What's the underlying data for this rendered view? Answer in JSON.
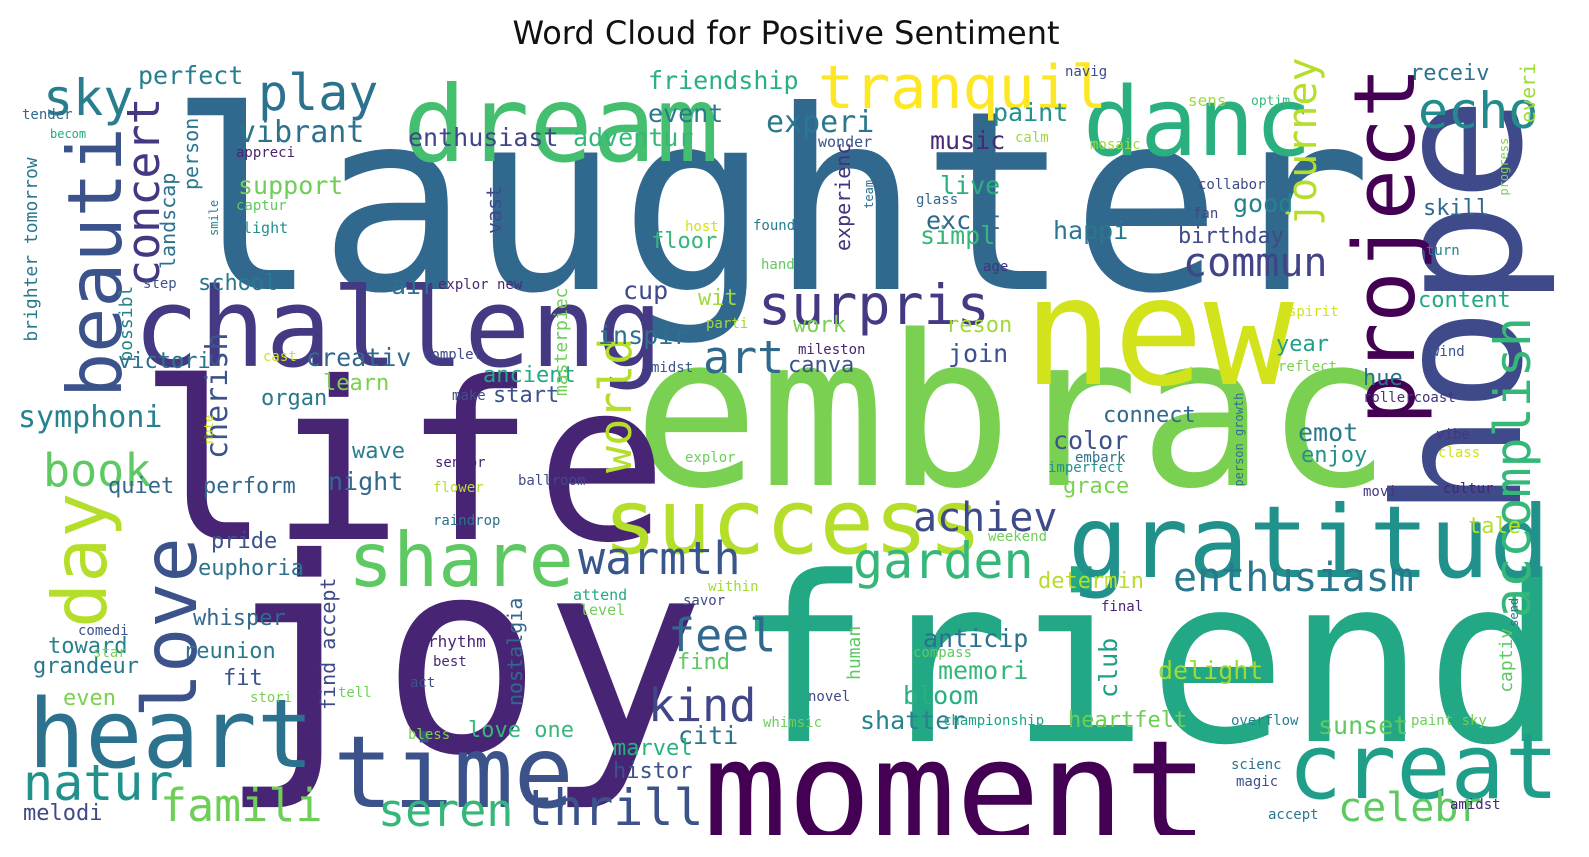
{
  "title": "Word Cloud for Positive Sentiment",
  "words": [
    {
      "text": "laughter",
      "color": "#31688e"
    },
    {
      "text": "joy",
      "color": "#482475"
    },
    {
      "text": "friend",
      "color": "#22a884"
    },
    {
      "text": "embrac",
      "color": "#7ad151"
    },
    {
      "text": "life",
      "color": "#482475"
    },
    {
      "text": "moment",
      "color": "#440154"
    },
    {
      "text": "new",
      "color": "#d2e21b"
    },
    {
      "text": "hope",
      "color": "#3e4a89"
    },
    {
      "text": "dream",
      "color": "#44bf70"
    },
    {
      "text": "challeng",
      "color": "#443983"
    },
    {
      "text": "danc",
      "color": "#2ab07f"
    },
    {
      "text": "gratitud",
      "color": "#21918c"
    },
    {
      "text": "success",
      "color": "#b5de2b"
    },
    {
      "text": "time",
      "color": "#3b528b"
    },
    {
      "text": "heart",
      "color": "#2c728e"
    },
    {
      "text": "project",
      "color": "#440154"
    },
    {
      "text": "creat",
      "color": "#1f9e89"
    },
    {
      "text": "share",
      "color": "#5ec962"
    },
    {
      "text": "tranquil",
      "color": "#fde725"
    },
    {
      "text": "beauti",
      "color": "#3b528b"
    },
    {
      "text": "love",
      "color": "#3b528b"
    },
    {
      "text": "day",
      "color": "#b5de2b"
    },
    {
      "text": "accomplish",
      "color": "#35b779"
    },
    {
      "text": "surpris",
      "color": "#443983"
    },
    {
      "text": "echo",
      "color": "#238a8d"
    },
    {
      "text": "natur",
      "color": "#21918c"
    },
    {
      "text": "warmth",
      "color": "#39568c"
    },
    {
      "text": "garden",
      "color": "#35b779"
    },
    {
      "text": "thrill",
      "color": "#3b528b"
    },
    {
      "text": "famili",
      "color": "#6ece58"
    },
    {
      "text": "seren",
      "color": "#35b779"
    },
    {
      "text": "celebr",
      "color": "#5ec962"
    },
    {
      "text": "enthusiasm",
      "color": "#2a788e"
    },
    {
      "text": "achiev",
      "color": "#3e4a89"
    },
    {
      "text": "kind",
      "color": "#404688"
    },
    {
      "text": "feel",
      "color": "#31688e"
    },
    {
      "text": "world",
      "color": "#b5de2b"
    },
    {
      "text": "play",
      "color": "#2c728e"
    },
    {
      "text": "sky",
      "color": "#287d8e"
    },
    {
      "text": "journey",
      "color": "#b5de2b"
    },
    {
      "text": "concert",
      "color": "#453781"
    },
    {
      "text": "art",
      "color": "#31688e"
    },
    {
      "text": "commun",
      "color": "#414487"
    },
    {
      "text": "book",
      "color": "#5ec962"
    },
    {
      "text": "symphoni",
      "color": "#26828e"
    },
    {
      "text": "cherish",
      "color": "#3b528b"
    },
    {
      "text": "experi",
      "color": "#2a788e"
    },
    {
      "text": "vibrant",
      "color": "#2c728e"
    },
    {
      "text": "enthusiast",
      "color": "#404688"
    },
    {
      "text": "adventur",
      "color": "#35b779"
    },
    {
      "text": "friendship",
      "color": "#2ab07f"
    },
    {
      "text": "perfect",
      "color": "#287d8e"
    },
    {
      "text": "support",
      "color": "#6ece58"
    },
    {
      "text": "landscap",
      "color": "#2c728e"
    },
    {
      "text": "person",
      "color": "#2a788e"
    },
    {
      "text": "event",
      "color": "#2a788e"
    },
    {
      "text": "paint",
      "color": "#21918c"
    },
    {
      "text": "music",
      "color": "#482878"
    },
    {
      "text": "experienc",
      "color": "#46327e"
    },
    {
      "text": "live",
      "color": "#2ab07f"
    },
    {
      "text": "excit",
      "color": "#31688e"
    },
    {
      "text": "simpl",
      "color": "#35b779"
    },
    {
      "text": "happi",
      "color": "#2a788e"
    },
    {
      "text": "good",
      "color": "#26828e"
    },
    {
      "text": "birthday",
      "color": "#3e4a89"
    },
    {
      "text": "skill",
      "color": "#31688e"
    },
    {
      "text": "receiv",
      "color": "#2c728e"
    },
    {
      "text": "everi",
      "color": "#9fda3a"
    },
    {
      "text": "content",
      "color": "#22a884"
    },
    {
      "text": "year",
      "color": "#1fa188"
    },
    {
      "text": "hue",
      "color": "#2c728e"
    },
    {
      "text": "emot",
      "color": "#2a788e"
    },
    {
      "text": "enjoy",
      "color": "#21918c"
    },
    {
      "text": "color",
      "color": "#3b528b"
    },
    {
      "text": "connect",
      "color": "#31688e"
    },
    {
      "text": "grace",
      "color": "#7ad151"
    },
    {
      "text": "tale",
      "color": "#b5de2b"
    },
    {
      "text": "determin",
      "color": "#b5de2b"
    },
    {
      "text": "anticip",
      "color": "#2c728e"
    },
    {
      "text": "memori",
      "color": "#35b779"
    },
    {
      "text": "club",
      "color": "#1f9e89"
    },
    {
      "text": "delight",
      "color": "#a0da39"
    },
    {
      "text": "bloom",
      "color": "#2ab07f"
    },
    {
      "text": "heartfelt",
      "color": "#6ece58"
    },
    {
      "text": "sunset",
      "color": "#5ec962"
    },
    {
      "text": "shatter",
      "color": "#26828e"
    },
    {
      "text": "citi",
      "color": "#2c728e"
    },
    {
      "text": "marvel",
      "color": "#2ab07f"
    },
    {
      "text": "histor",
      "color": "#3b528b"
    },
    {
      "text": "love one",
      "color": "#35b779"
    },
    {
      "text": "inspir",
      "color": "#2c728e"
    },
    {
      "text": "canva",
      "color": "#3b528b"
    },
    {
      "text": "work",
      "color": "#7ad151"
    },
    {
      "text": "join",
      "color": "#3b528b"
    },
    {
      "text": "reson",
      "color": "#9fda3a"
    },
    {
      "text": "creativ",
      "color": "#31688e"
    },
    {
      "text": "ancient",
      "color": "#22a884"
    },
    {
      "text": "start",
      "color": "#3b528b"
    },
    {
      "text": "learn",
      "color": "#7ad151"
    },
    {
      "text": "organ",
      "color": "#2a788e"
    },
    {
      "text": "wave",
      "color": "#287d8e"
    },
    {
      "text": "night",
      "color": "#31688e"
    },
    {
      "text": "perform",
      "color": "#31688e"
    },
    {
      "text": "quiet",
      "color": "#31688e"
    },
    {
      "text": "pride",
      "color": "#3b528b"
    },
    {
      "text": "euphoria",
      "color": "#2c728e"
    },
    {
      "text": "whisper",
      "color": "#31688e"
    },
    {
      "text": "toward",
      "color": "#26828e"
    },
    {
      "text": "grandeur",
      "color": "#2a788e"
    },
    {
      "text": "reunion",
      "color": "#2a788e"
    },
    {
      "text": "fit",
      "color": "#3b528b"
    },
    {
      "text": "even",
      "color": "#7ad151"
    },
    {
      "text": "melodi",
      "color": "#3e4a89"
    },
    {
      "text": "victori",
      "color": "#2c728e"
    },
    {
      "text": "school",
      "color": "#2a788e"
    },
    {
      "text": "air",
      "color": "#2c728e"
    },
    {
      "text": "cup",
      "color": "#3e4a89"
    },
    {
      "text": "wit",
      "color": "#9fda3a"
    },
    {
      "text": "floor",
      "color": "#35b779"
    },
    {
      "text": "vast",
      "color": "#3e4a89"
    },
    {
      "text": "masterpiec",
      "color": "#6ece58"
    },
    {
      "text": "possibl",
      "color": "#26828e"
    },
    {
      "text": "brighter tomorrow",
      "color": "#2a788e"
    },
    {
      "text": "find accept",
      "color": "#3e4a89"
    },
    {
      "text": "nostalgia",
      "color": "#31688e"
    },
    {
      "text": "human",
      "color": "#5ec962"
    },
    {
      "text": "find",
      "color": "#5ec962"
    },
    {
      "text": "captiv",
      "color": "#5ec962"
    },
    {
      "text": "explor new",
      "color": "#482878"
    },
    {
      "text": "appreci",
      "color": "#482475"
    },
    {
      "text": "wonder",
      "color": "#3b528b"
    },
    {
      "text": "calm",
      "color": "#9fda3a"
    },
    {
      "text": "mosaic",
      "color": "#a0da39"
    },
    {
      "text": "glass",
      "color": "#31688e"
    },
    {
      "text": "collabor",
      "color": "#3e4a89"
    },
    {
      "text": "fan",
      "color": "#414487"
    },
    {
      "text": "host",
      "color": "#d2e21b"
    },
    {
      "text": "found",
      "color": "#287d8e"
    },
    {
      "text": "hand",
      "color": "#5ec962"
    },
    {
      "text": "age",
      "color": "#46327e"
    },
    {
      "text": "turn",
      "color": "#26828e"
    },
    {
      "text": "progress",
      "color": "#7ad151"
    },
    {
      "text": "team",
      "color": "#2c728e"
    },
    {
      "text": "light",
      "color": "#21918c"
    },
    {
      "text": "captur",
      "color": "#5ec962"
    },
    {
      "text": "smile",
      "color": "#26828e"
    },
    {
      "text": "tender",
      "color": "#31688e"
    },
    {
      "text": "becom",
      "color": "#22a884"
    },
    {
      "text": "navig",
      "color": "#3e4a89"
    },
    {
      "text": "sens",
      "color": "#9fda3a"
    },
    {
      "text": "optim",
      "color": "#35b779"
    },
    {
      "text": "step",
      "color": "#3b528b"
    },
    {
      "text": "parti",
      "color": "#a0da39"
    },
    {
      "text": "cast",
      "color": "#d2e21b"
    },
    {
      "text": "complet",
      "color": "#3e4a89"
    },
    {
      "text": "midst",
      "color": "#3b528b"
    },
    {
      "text": "mileston",
      "color": "#482475"
    },
    {
      "text": "make",
      "color": "#3b528b"
    },
    {
      "text": "spirit",
      "color": "#d2e21b"
    },
    {
      "text": "wind",
      "color": "#3b528b"
    },
    {
      "text": "reflect",
      "color": "#7ad151"
    },
    {
      "text": "rollercoast",
      "color": "#46327e"
    },
    {
      "text": "person growth",
      "color": "#2c728e"
    },
    {
      "text": "vibe",
      "color": "#453781"
    },
    {
      "text": "class",
      "color": "#d2e21b"
    },
    {
      "text": "note",
      "color": "#d2e21b"
    },
    {
      "text": "senior",
      "color": "#482475"
    },
    {
      "text": "flower",
      "color": "#b5de2b"
    },
    {
      "text": "ballroom",
      "color": "#3e4a89"
    },
    {
      "text": "explor",
      "color": "#6ece58"
    },
    {
      "text": "embark",
      "color": "#2c728e"
    },
    {
      "text": "imperfect",
      "color": "#21918c"
    },
    {
      "text": "movi",
      "color": "#443983"
    },
    {
      "text": "cultur",
      "color": "#482475"
    },
    {
      "text": "raindrop",
      "color": "#2c728e"
    },
    {
      "text": "weekend",
      "color": "#6ece58"
    },
    {
      "text": "attend",
      "color": "#22a884"
    },
    {
      "text": "level",
      "color": "#6ece58"
    },
    {
      "text": "within",
      "color": "#a0da39"
    },
    {
      "text": "savor",
      "color": "#3e4a89"
    },
    {
      "text": "final",
      "color": "#482475"
    },
    {
      "text": "send",
      "color": "#2a788e"
    },
    {
      "text": "comedi",
      "color": "#3b528b"
    },
    {
      "text": "star",
      "color": "#7ad151"
    },
    {
      "text": "stori",
      "color": "#7ad151"
    },
    {
      "text": "tell",
      "color": "#6ece58"
    },
    {
      "text": "act",
      "color": "#3b528b"
    },
    {
      "text": "rhythm",
      "color": "#482878"
    },
    {
      "text": "best",
      "color": "#482878"
    },
    {
      "text": "compass",
      "color": "#5ec962"
    },
    {
      "text": "novel",
      "color": "#3e4a89"
    },
    {
      "text": "bless",
      "color": "#7ad151"
    },
    {
      "text": "whimsic",
      "color": "#6ece58"
    },
    {
      "text": "championship",
      "color": "#1fa188"
    },
    {
      "text": "overflow",
      "color": "#26828e"
    },
    {
      "text": "paint sky",
      "color": "#6ece58"
    },
    {
      "text": "scienc",
      "color": "#2c728e"
    },
    {
      "text": "magic",
      "color": "#3b528b"
    },
    {
      "text": "accept",
      "color": "#2a788e"
    },
    {
      "text": "amidst",
      "color": "#482475"
    }
  ]
}
